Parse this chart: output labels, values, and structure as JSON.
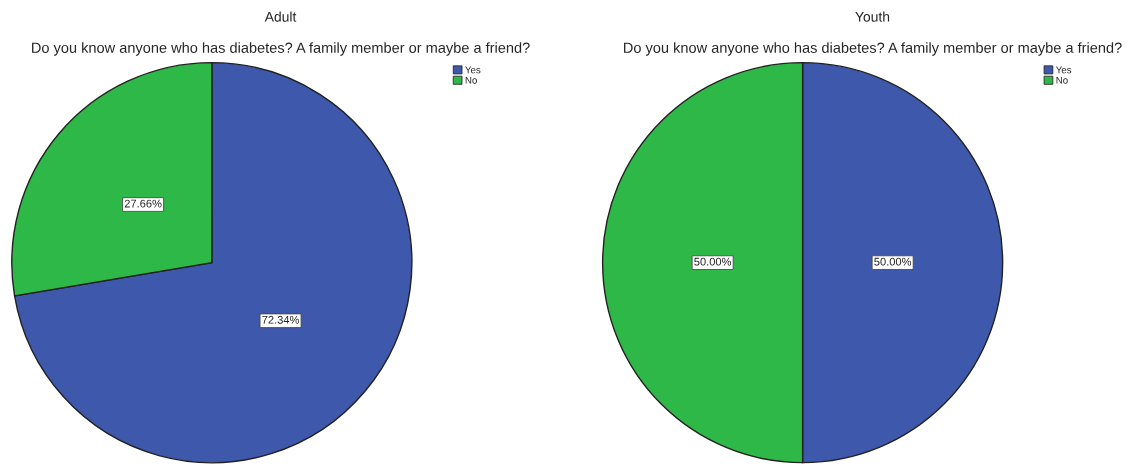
{
  "chart_data": [
    {
      "type": "pie",
      "title": "Adult",
      "subtitle": "Do you know anyone who has diabetes? A family member or maybe a friend?",
      "categories": [
        "Yes",
        "No"
      ],
      "values": [
        72.34,
        27.66
      ],
      "colors": [
        "#3e58ac",
        "#2eb848"
      ],
      "value_labels": [
        "72.34%",
        "27.66%"
      ],
      "legend": "top right"
    },
    {
      "type": "pie",
      "title": "Youth",
      "subtitle": "Do you know anyone who has diabetes? A family member or maybe a friend?",
      "categories": [
        "Yes",
        "No"
      ],
      "values": [
        50.0,
        50.0
      ],
      "colors": [
        "#3e58ac",
        "#2eb848"
      ],
      "value_labels": [
        "50.00%",
        "50.00%"
      ],
      "legend": "top right"
    }
  ]
}
